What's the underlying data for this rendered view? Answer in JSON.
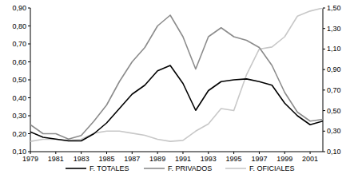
{
  "chart_data": {
    "type": "line",
    "x": [
      1979,
      1980,
      1981,
      1982,
      1983,
      1984,
      1985,
      1986,
      1987,
      1988,
      1989,
      1990,
      1991,
      1992,
      1993,
      1994,
      1995,
      1996,
      1997,
      1998,
      1999,
      2000,
      2001,
      2002
    ],
    "xlim": [
      1979,
      2002
    ],
    "xticks": [
      1979,
      1981,
      1983,
      1985,
      1987,
      1989,
      1991,
      1993,
      1995,
      1997,
      1999,
      2001
    ],
    "ylim": [
      0.1,
      0.9
    ],
    "yticks": [
      {
        "value": 0.1,
        "label": "0,10"
      },
      {
        "value": 0.2,
        "label": "0,20"
      },
      {
        "value": 0.3,
        "label": "0,30"
      },
      {
        "value": 0.4,
        "label": "0,40"
      },
      {
        "value": 0.5,
        "label": "0,50"
      },
      {
        "value": 0.6,
        "label": "0,60"
      },
      {
        "value": 0.7,
        "label": "0,70"
      },
      {
        "value": 0.8,
        "label": "0,80"
      },
      {
        "value": 0.9,
        "label": "0,90"
      }
    ],
    "y2lim": [
      0.1,
      1.5
    ],
    "y2ticks": [
      {
        "value": 0.1,
        "label": "0,10"
      },
      {
        "value": 0.3,
        "label": "0,30"
      },
      {
        "value": 0.5,
        "label": "0,50"
      },
      {
        "value": 0.7,
        "label": "0,70"
      },
      {
        "value": 0.9,
        "label": "0,90"
      },
      {
        "value": 1.1,
        "label": "1,10"
      },
      {
        "value": 1.3,
        "label": "1,30"
      },
      {
        "value": 1.5,
        "label": "1,50"
      }
    ],
    "grid": false,
    "legend": "bottom",
    "series": [
      {
        "name": "F. TOTALES",
        "color": "#000000",
        "values": [
          0.21,
          0.18,
          0.17,
          0.16,
          0.16,
          0.2,
          0.26,
          0.34,
          0.42,
          0.47,
          0.55,
          0.58,
          0.48,
          0.33,
          0.44,
          0.49,
          0.5,
          0.505,
          0.49,
          0.47,
          0.37,
          0.3,
          0.25,
          0.27
        ]
      },
      {
        "name": "F. PRIVADOS",
        "color": "#8c8c8c",
        "values": [
          0.25,
          0.2,
          0.2,
          0.17,
          0.19,
          0.27,
          0.36,
          0.49,
          0.6,
          0.68,
          0.8,
          0.86,
          0.74,
          0.56,
          0.74,
          0.79,
          0.74,
          0.72,
          0.68,
          0.58,
          0.43,
          0.32,
          0.27,
          0.28
        ]
      },
      {
        "name": "F. OFICIALES",
        "color": "#c8c8c8",
        "axis": "y2",
        "values": [
          0.2,
          0.22,
          0.22,
          0.21,
          0.22,
          0.28,
          0.3,
          0.3,
          0.28,
          0.26,
          0.22,
          0.2,
          0.21,
          0.3,
          0.37,
          0.52,
          0.5,
          0.85,
          1.1,
          1.12,
          1.22,
          1.42,
          1.47,
          1.5
        ]
      }
    ]
  }
}
